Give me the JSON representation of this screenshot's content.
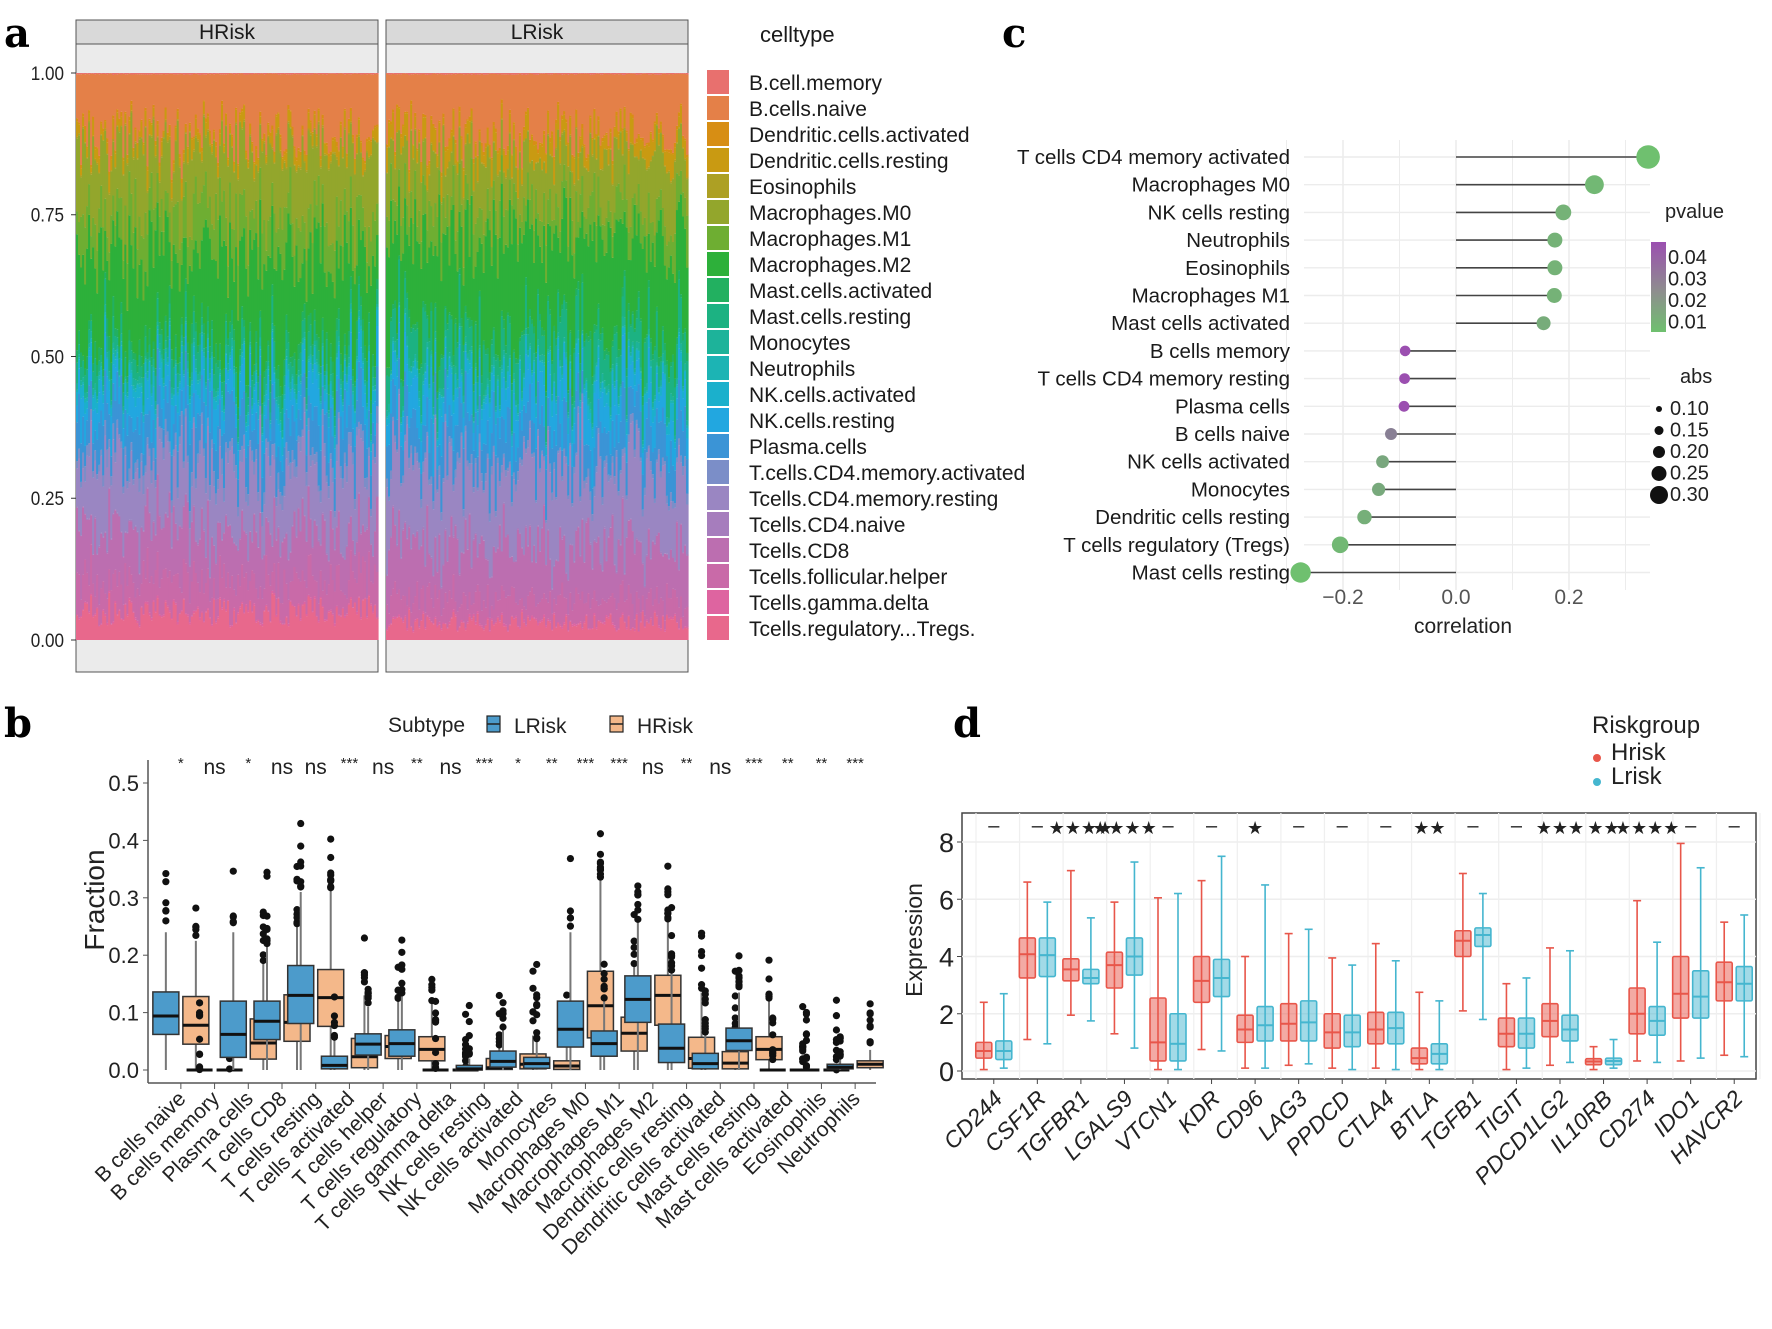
{
  "panel_letters": {
    "a": "a",
    "b": "b",
    "c": "c",
    "d": "d"
  },
  "chart_data": [
    {
      "id": "a",
      "type": "bar",
      "subtype": "stacked-100-percent",
      "facets": [
        "HRisk",
        "LRisk"
      ],
      "ylabel": "",
      "xlabel": "",
      "yticks": [
        "0.00",
        "0.25",
        "0.50",
        "0.75",
        "1.00"
      ],
      "ylim": [
        0,
        1
      ],
      "legend_title": "celltype",
      "legend_position": "right",
      "categories": [
        "B.cell.memory",
        "B.cells.naive",
        "Dendritic.cells.activated",
        "Dendritic.cells.resting",
        "Eosinophils",
        "Macrophages.M0",
        "Macrophages.M1",
        "Macrophages.M2",
        "Mast.cells.activated",
        "Mast.cells.resting",
        "Monocytes",
        "Neutrophils",
        "NK.cells.activated",
        "NK.cells.resting",
        "Plasma.cells",
        "T.cells.CD4.memory.activated",
        "Tcells.CD4.memory.resting",
        "Tcells.CD4.naive",
        "Tcells.CD8",
        "Tcells.follicular.helper",
        "Tcells.gamma.delta",
        "Tcells.regulatory...Tregs."
      ],
      "colors": [
        "#E8706E",
        "#E48048",
        "#D78E14",
        "#C99A12",
        "#ADA024",
        "#93A62C",
        "#6EAE32",
        "#2DB03A",
        "#22B060",
        "#1CB282",
        "#1DB39A",
        "#1CB4B4",
        "#1BB0CC",
        "#22A7E0",
        "#3B94D6",
        "#7B8EC8",
        "#9A86C2",
        "#A67DBD",
        "#BC6EB0",
        "#C96AA8",
        "#DE64A0",
        "#E8688C"
      ],
      "approx_mean_fraction": {
        "HRisk": [
          0.002,
          0.11,
          0.005,
          0.02,
          0.003,
          0.12,
          0.07,
          0.16,
          0.02,
          0.03,
          0.01,
          0.005,
          0.02,
          0.05,
          0.07,
          0.02,
          0.11,
          0.002,
          0.09,
          0.06,
          0.003,
          0.05
        ],
        "LRisk": [
          0.002,
          0.1,
          0.005,
          0.03,
          0.002,
          0.09,
          0.05,
          0.17,
          0.01,
          0.06,
          0.01,
          0.003,
          0.02,
          0.06,
          0.07,
          0.01,
          0.13,
          0.002,
          0.09,
          0.04,
          0.003,
          0.03
        ]
      }
    },
    {
      "id": "b",
      "type": "box",
      "ylabel": "Fraction",
      "xlabel": "",
      "yticks": [
        "0.0",
        "0.1",
        "0.2",
        "0.3",
        "0.4",
        "0.5"
      ],
      "ylim": [
        0,
        0.52
      ],
      "legend_title": "Subtype",
      "legend_position": "top",
      "series": [
        {
          "name": "LRisk",
          "color": "#4C9BCB"
        },
        {
          "name": "HRisk",
          "color": "#F4B88A"
        }
      ],
      "categories": [
        "B cells naive",
        "B cells memory",
        "Plasma cells",
        "T cells CD8",
        "T cells resting",
        "T cells activated",
        "T cells  helper",
        "T cells regulatory",
        "T cells gamma delta",
        "NK cells resting",
        "NK cells activated",
        "Monocytes",
        "Macrophages M0",
        "Macrophages M1",
        "Macrophages M2",
        "Dendritic cells resting",
        "Dendritic cells activated",
        "Mast cells resting",
        "Mast cells activated",
        "Eosinophils",
        "Neutrophils"
      ],
      "significance": [
        "*",
        "ns",
        "*",
        "ns",
        "ns",
        "***",
        "ns",
        "**",
        "ns",
        "***",
        "*",
        "**",
        "***",
        "***",
        "ns",
        "**",
        "ns",
        "***",
        "**",
        "**",
        "***"
      ],
      "boxes": {
        "LRisk": [
          [
            0,
            0.062,
            0.094,
            0.136,
            0.24
          ],
          [
            0,
            0,
            0,
            0,
            0
          ],
          [
            0,
            0.022,
            0.062,
            0.12,
            0.24
          ],
          [
            0,
            0.053,
            0.085,
            0.12,
            0.22
          ],
          [
            0,
            0.081,
            0.13,
            0.182,
            0.31
          ],
          [
            0,
            0.002,
            0.008,
            0.024,
            0.055
          ],
          [
            0,
            0.026,
            0.045,
            0.063,
            0.11
          ],
          [
            0,
            0.024,
            0.046,
            0.07,
            0.13
          ],
          [
            0,
            0,
            0,
            0,
            0
          ],
          [
            0,
            0,
            0.002,
            0.008,
            0.02
          ],
          [
            0,
            0.005,
            0.015,
            0.033,
            0.07
          ],
          [
            0,
            0.003,
            0.011,
            0.022,
            0.05
          ],
          [
            0,
            0.04,
            0.071,
            0.12,
            0.24
          ],
          [
            0,
            0.024,
            0.046,
            0.068,
            0.12
          ],
          [
            0,
            0.083,
            0.123,
            0.164,
            0.26
          ],
          [
            0,
            0.013,
            0.038,
            0.08,
            0.17
          ],
          [
            0,
            0.002,
            0.011,
            0.029,
            0.065
          ],
          [
            0,
            0.034,
            0.051,
            0.073,
            0.135
          ],
          [
            0,
            0,
            0,
            0,
            0
          ],
          [
            0,
            0,
            0,
            0,
            0
          ],
          [
            0,
            0.002,
            0.005,
            0.01,
            0.02
          ]
        ],
        "HRisk": [
          [
            0,
            0.045,
            0.078,
            0.128,
            0.225
          ],
          [
            0,
            0,
            0,
            0,
            0
          ],
          [
            0,
            0.019,
            0.047,
            0.089,
            0.19
          ],
          [
            0,
            0.05,
            0.083,
            0.131,
            0.25
          ],
          [
            0,
            0.076,
            0.126,
            0.175,
            0.315
          ],
          [
            0,
            0.004,
            0.023,
            0.055,
            0.13
          ],
          [
            0,
            0.02,
            0.041,
            0.06,
            0.12
          ],
          [
            0,
            0.016,
            0.036,
            0.058,
            0.12
          ],
          [
            0,
            0,
            0,
            0,
            0
          ],
          [
            0,
            0.001,
            0.004,
            0.02,
            0.04
          ],
          [
            0,
            0.002,
            0.01,
            0.028,
            0.06
          ],
          [
            0,
            0.001,
            0.007,
            0.016,
            0.04
          ],
          [
            0,
            0.056,
            0.112,
            0.172,
            0.33
          ],
          [
            0,
            0.033,
            0.064,
            0.092,
            0.18
          ],
          [
            0,
            0.078,
            0.13,
            0.165,
            0.26
          ],
          [
            0,
            0.003,
            0.02,
            0.057,
            0.135
          ],
          [
            0,
            0.002,
            0.012,
            0.032,
            0.07
          ],
          [
            0,
            0.018,
            0.036,
            0.058,
            0.125
          ],
          [
            0,
            0,
            0,
            0,
            0
          ],
          [
            0,
            0,
            0,
            0,
            0
          ],
          [
            0,
            0.004,
            0.01,
            0.016,
            0.035
          ]
        ]
      }
    },
    {
      "id": "c",
      "type": "lollipop",
      "xlabel": "correlation",
      "ylabel": "",
      "xticks": [
        "-0.2",
        "0.0",
        "0.2"
      ],
      "xlim": [
        -0.33,
        0.36
      ],
      "grid": true,
      "categories": [
        "T cells CD4 memory activated",
        "Macrophages M0",
        "NK cells resting",
        "Neutrophils",
        "Eosinophils",
        "Macrophages M1",
        "Mast cells activated",
        "B cells memory",
        "T cells CD4 memory resting",
        "Plasma cells",
        "B cells naive",
        "NK cells activated",
        "Monocytes",
        "Dendritic cells resting",
        "T cells regulatory (Tregs)",
        "Mast cells resting"
      ],
      "values": [
        0.34,
        0.245,
        0.19,
        0.175,
        0.175,
        0.174,
        0.155,
        -0.09,
        -0.091,
        -0.092,
        -0.115,
        -0.13,
        -0.137,
        -0.162,
        -0.205,
        -0.275
      ],
      "pvalues": [
        0.005,
        0.008,
        0.01,
        0.01,
        0.01,
        0.01,
        0.012,
        0.045,
        0.045,
        0.045,
        0.028,
        0.014,
        0.013,
        0.011,
        0.008,
        0.005
      ],
      "legend": {
        "pvalue_title": "pvalue",
        "pvalue_ticks": [
          "0.04",
          "0.03",
          "0.02",
          "0.01"
        ],
        "pvalue_colors": [
          "#9B4FB0",
          "#6FC06F"
        ],
        "abs_title": "abs",
        "abs_ticks": [
          "0.10",
          "0.15",
          "0.20",
          "0.25",
          "0.30"
        ]
      }
    },
    {
      "id": "d",
      "type": "box",
      "ylabel": "Expression",
      "xlabel": "",
      "yticks": [
        "0",
        "2",
        "4",
        "6",
        "8"
      ],
      "ylim": [
        -0.1,
        9
      ],
      "legend_title": "Riskgroup",
      "legend_position": "top-right",
      "series": [
        {
          "name": "Hrisk",
          "color": "#E8564A"
        },
        {
          "name": "Lrisk",
          "color": "#45B6CF"
        }
      ],
      "categories": [
        "CD244",
        "CSF1R",
        "TGFBR1",
        "LGALS9",
        "VTCN1",
        "KDR",
        "CD96",
        "LAG3",
        "PPDCD",
        "CTLA4",
        "BTLA",
        "TGFB1",
        "TIGIT",
        "PDCD1LG2",
        "IL10RB",
        "CD274",
        "IDO1",
        "HAVCR2"
      ],
      "significance": [
        "-",
        "-",
        "****",
        "****",
        "-",
        "-",
        "*",
        "-",
        "-",
        "-",
        "**",
        "-",
        "-",
        "***",
        "**",
        "****",
        "-",
        "-"
      ],
      "boxes": {
        "Hrisk": [
          [
            0.05,
            0.45,
            0.7,
            1.0,
            2.4
          ],
          [
            1.1,
            3.25,
            4.08,
            4.65,
            6.6
          ],
          [
            1.95,
            3.15,
            3.55,
            3.92,
            7.0
          ],
          [
            1.3,
            2.9,
            3.7,
            4.15,
            5.9
          ],
          [
            0.05,
            0.35,
            1.0,
            2.55,
            6.05
          ],
          [
            0.75,
            2.4,
            3.15,
            4.0,
            6.65
          ],
          [
            0.1,
            1.0,
            1.45,
            1.95,
            4.0
          ],
          [
            0.2,
            1.05,
            1.65,
            2.35,
            4.8
          ],
          [
            0.1,
            0.8,
            1.35,
            2.0,
            3.95
          ],
          [
            0.1,
            0.95,
            1.45,
            2.05,
            4.45
          ],
          [
            0.05,
            0.25,
            0.45,
            0.8,
            2.75
          ],
          [
            2.1,
            4.0,
            4.55,
            4.9,
            6.9
          ],
          [
            0.05,
            0.85,
            1.3,
            1.85,
            3.05
          ],
          [
            0.2,
            1.2,
            1.75,
            2.35,
            4.3
          ],
          [
            0.05,
            0.22,
            0.33,
            0.43,
            0.85
          ],
          [
            0.35,
            1.3,
            2.0,
            2.9,
            5.95
          ],
          [
            0.35,
            1.85,
            2.7,
            4.0,
            7.95
          ],
          [
            0.55,
            2.45,
            3.1,
            3.8,
            5.2
          ]
        ],
        "Lrisk": [
          [
            0.1,
            0.4,
            0.7,
            1.05,
            2.7
          ],
          [
            0.95,
            3.3,
            4.05,
            4.65,
            5.9
          ],
          [
            1.75,
            3.05,
            3.25,
            3.55,
            5.35
          ],
          [
            0.8,
            3.35,
            4.0,
            4.65,
            7.3
          ],
          [
            0.05,
            0.35,
            0.95,
            2.0,
            6.2
          ],
          [
            0.7,
            2.6,
            3.25,
            3.9,
            7.5
          ],
          [
            0.1,
            1.05,
            1.6,
            2.25,
            6.5
          ],
          [
            0.25,
            1.05,
            1.7,
            2.45,
            4.95
          ],
          [
            0.05,
            0.85,
            1.35,
            1.95,
            3.7
          ],
          [
            0.05,
            0.95,
            1.5,
            2.05,
            3.85
          ],
          [
            0.05,
            0.25,
            0.6,
            0.95,
            2.45
          ],
          [
            1.8,
            4.35,
            4.75,
            5.0,
            6.2
          ],
          [
            0.1,
            0.8,
            1.3,
            1.85,
            3.25
          ],
          [
            0.3,
            1.05,
            1.45,
            1.95,
            4.2
          ],
          [
            0.1,
            0.22,
            0.35,
            0.45,
            1.1
          ],
          [
            0.3,
            1.25,
            1.75,
            2.25,
            4.5
          ],
          [
            0.45,
            1.85,
            2.6,
            3.5,
            7.1
          ],
          [
            0.5,
            2.45,
            3.05,
            3.65,
            5.45
          ]
        ]
      }
    }
  ]
}
